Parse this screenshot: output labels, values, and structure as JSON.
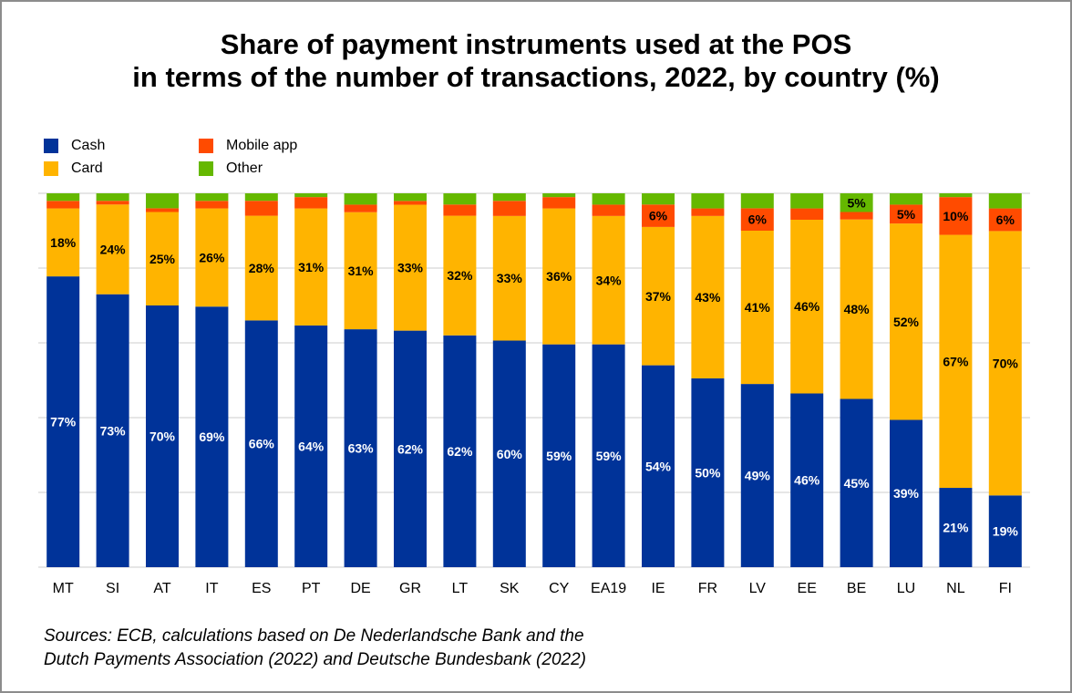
{
  "title_line1": "Share of payment instruments used at the POS",
  "title_line2": "in terms of the number of transactions, 2022, by country (%)",
  "legend": [
    {
      "label": "Cash",
      "color": "#003399"
    },
    {
      "label": "Card",
      "color": "#ffb400"
    },
    {
      "label": "Mobile app",
      "color": "#ff4b00"
    },
    {
      "label": "Other",
      "color": "#65b800"
    }
  ],
  "source_line1": "Sources: ECB, calculations based on De Nederlandsche Bank and the",
  "source_line2": "Dutch Payments Association (2022) and Deutsche Bundesbank (2022)",
  "chart_data": {
    "type": "bar",
    "stacked": true,
    "title": "Share of payment instruments used at the POS in terms of the number of transactions, 2022, by country (%)",
    "categories": [
      "MT",
      "SI",
      "AT",
      "IT",
      "ES",
      "PT",
      "DE",
      "GR",
      "LT",
      "SK",
      "CY",
      "EA19",
      "IE",
      "FR",
      "LV",
      "EE",
      "BE",
      "LU",
      "NL",
      "FI"
    ],
    "ylim": [
      0,
      100
    ],
    "grid": true,
    "legend_position": "top-left",
    "series": [
      {
        "name": "Cash",
        "color": "#003399",
        "values": [
          77,
          73,
          70,
          69,
          66,
          64,
          63,
          62,
          62,
          60,
          59,
          59,
          54,
          50,
          49,
          46,
          45,
          39,
          21,
          19
        ],
        "labels": [
          "77%",
          "73%",
          "70%",
          "69%",
          "66%",
          "64%",
          "63%",
          "62%",
          "62%",
          "60%",
          "59%",
          "59%",
          "54%",
          "50%",
          "49%",
          "46%",
          "45%",
          "39%",
          "21%",
          "19%"
        ]
      },
      {
        "name": "Card",
        "color": "#ffb400",
        "values": [
          18,
          24,
          25,
          26,
          28,
          31,
          31,
          33,
          32,
          33,
          36,
          34,
          37,
          43,
          41,
          46,
          48,
          52,
          67,
          70
        ],
        "labels": [
          "18%",
          "24%",
          "25%",
          "26%",
          "28%",
          "31%",
          "31%",
          "33%",
          "32%",
          "33%",
          "36%",
          "34%",
          "37%",
          "43%",
          "41%",
          "46%",
          "48%",
          "52%",
          "67%",
          "70%"
        ]
      },
      {
        "name": "Mobile app",
        "color": "#ff4b00",
        "values": [
          2,
          1,
          1,
          2,
          4,
          3,
          2,
          1,
          3,
          4,
          3,
          3,
          6,
          2,
          6,
          3,
          2,
          5,
          10,
          6
        ],
        "labels": [
          "",
          "",
          "",
          "",
          "",
          "",
          "",
          "",
          "",
          "",
          "",
          "",
          "6%",
          "",
          "6%",
          "",
          "",
          "5%",
          "10%",
          "6%"
        ]
      },
      {
        "name": "Other",
        "color": "#65b800",
        "values": [
          2,
          2,
          4,
          2,
          2,
          1,
          3,
          2,
          3,
          2,
          1,
          3,
          3,
          4,
          4,
          4,
          5,
          3,
          1,
          4
        ],
        "labels": [
          "",
          "",
          "",
          "",
          "",
          "",
          "",
          "",
          "",
          "",
          "",
          "",
          "",
          "",
          "",
          "",
          "5%",
          "",
          "",
          ""
        ]
      }
    ]
  }
}
